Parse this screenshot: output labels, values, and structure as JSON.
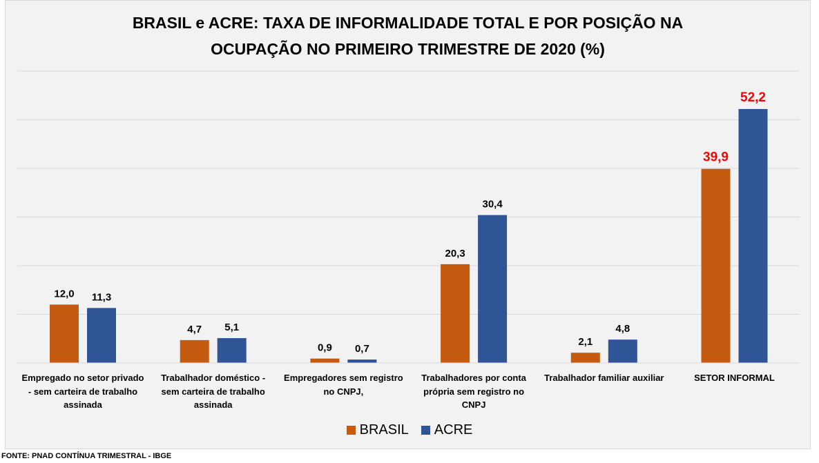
{
  "chart_data": {
    "type": "bar",
    "title": "BRASIL e ACRE: TAXA DE INFORMALIDADE TOTAL  E POR POSIÇÃO NA OCUPAÇÃO NO PRIMEIRO TRIMESTRE DE 2020 (%)",
    "title_lines": [
      "BRASIL e ACRE: TAXA DE INFORMALIDADE TOTAL  E POR POSIÇÃO NA",
      "OCUPAÇÃO NO PRIMEIRO TRIMESTRE DE 2020 (%)"
    ],
    "categories": [
      "Empregado no setor privado - sem carteira de trabalho assinada",
      "Trabalhador doméstico - sem carteira de trabalho assinada",
      "Empregadores sem registro no CNPJ,",
      "Trabalhadores por conta própria sem registro no CNPJ",
      "Trabalhador familiar auxiliar",
      "SETOR INFORMAL"
    ],
    "series": [
      {
        "name": "BRASIL",
        "color": "#C55A11",
        "values": [
          12.0,
          4.7,
          0.9,
          20.3,
          2.1,
          39.9
        ],
        "labels": [
          "12,0",
          "4,7",
          "0,9",
          "20,3",
          "2,1",
          "39,9"
        ]
      },
      {
        "name": "ACRE",
        "color": "#2F5597",
        "values": [
          11.3,
          5.1,
          0.7,
          30.4,
          4.8,
          52.2
        ],
        "labels": [
          "11,3",
          "5,1",
          "0,7",
          "30,4",
          "4,8",
          "52,2"
        ]
      }
    ],
    "highlight_label_color": "#FF0000",
    "ylim": [
      0,
      60
    ],
    "grid": true,
    "legend": "bottom-center",
    "xlabel": "",
    "ylabel": ""
  },
  "source": "FONTE: PNAD CONTÍNUA TRIMESTRAL - IBGE"
}
